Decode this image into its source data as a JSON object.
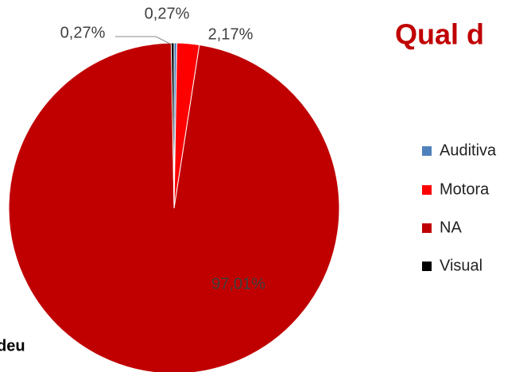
{
  "chart_data": {
    "type": "pie",
    "title": "Qual d",
    "annotation": "deu",
    "categories": [
      "Auditiva",
      "Motora",
      "NA",
      "Visual"
    ],
    "values": [
      0.27,
      2.17,
      97.01,
      0.27
    ],
    "value_labels": [
      "0,27%",
      "2,17%",
      "97,01%",
      "0,27%"
    ],
    "colors": [
      "#4f81bd",
      "#ff0000",
      "#c00000",
      "#000000"
    ],
    "legend": "right"
  }
}
